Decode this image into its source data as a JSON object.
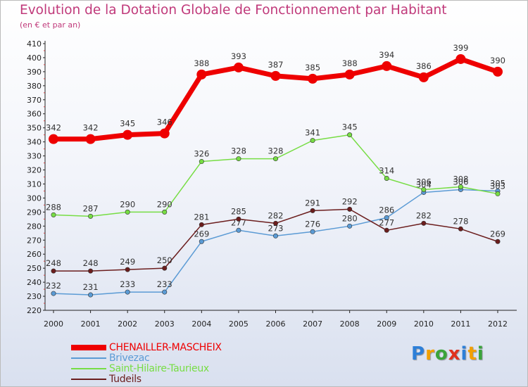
{
  "chart_data": {
    "type": "line",
    "title": "Evolution de la Dotation Globale de Fonctionnement par Habitant",
    "subtitle": "(en € et par an)",
    "x": [
      "2000",
      "2001",
      "2002",
      "2003",
      "2004",
      "2005",
      "2006",
      "2007",
      "2008",
      "2009",
      "2010",
      "2011",
      "2012"
    ],
    "ylim": [
      220,
      410
    ],
    "yticks": [
      220,
      230,
      240,
      250,
      260,
      270,
      280,
      290,
      300,
      310,
      320,
      330,
      340,
      350,
      360,
      370,
      380,
      390,
      400,
      410
    ],
    "grid": false,
    "legend_position": "bottom-left",
    "series": [
      {
        "name": "CHENAILLER-MASCHEIX",
        "color": "#ee0000",
        "values": [
          342,
          342,
          345,
          346,
          388,
          393,
          387,
          385,
          388,
          394,
          386,
          399,
          390
        ]
      },
      {
        "name": "Brivezac",
        "color": "#5b9bd5",
        "values": [
          232,
          231,
          233,
          233,
          269,
          277,
          273,
          276,
          280,
          286,
          304,
          306,
          305
        ]
      },
      {
        "name": "Saint-Hilaire-Taurieux",
        "color": "#77dd44",
        "values": [
          288,
          287,
          290,
          290,
          326,
          328,
          328,
          341,
          345,
          314,
          306,
          308,
          303
        ]
      },
      {
        "name": "Tudeils",
        "color": "#6b1d1d",
        "values": [
          248,
          248,
          249,
          250,
          281,
          285,
          282,
          291,
          292,
          277,
          282,
          278,
          269
        ]
      }
    ]
  },
  "logo": {
    "letters": [
      "P",
      "r",
      "o",
      "x",
      "i",
      "t",
      "i"
    ],
    "colors": [
      "#2d7fd8",
      "#f2a000",
      "#3aa43a",
      "#e0301e",
      "#2d7fd8",
      "#f2a000",
      "#3aa43a"
    ]
  }
}
